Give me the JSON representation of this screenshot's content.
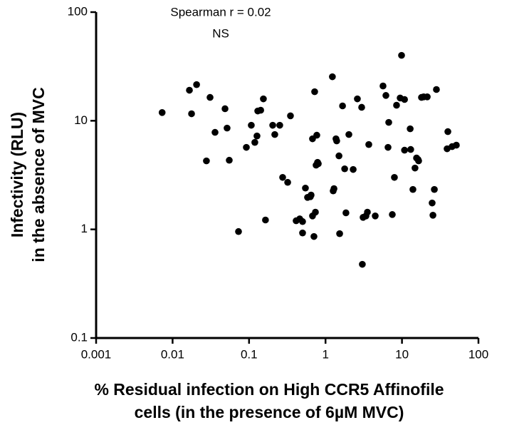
{
  "chart_data": {
    "type": "scatter",
    "annotations": [
      "Spearman r = 0.02",
      "NS"
    ],
    "x_label": [
      "% Residual infection on High CCR5 Affinofile",
      "cells (in the presence of 6µM MVC)"
    ],
    "y_label": [
      "Infectivity (RLU)",
      "in the absence of MVC"
    ],
    "xlog": true,
    "ylog": true,
    "xlim": [
      0.001,
      100
    ],
    "ylim": [
      0.1,
      100
    ],
    "xticks": [
      0.001,
      0.01,
      0.1,
      1,
      10,
      100
    ],
    "yticks": [
      0.1,
      1,
      10,
      100
    ],
    "color": "#000000",
    "x": [
      0.0073,
      0.0166,
      0.0177,
      0.0206,
      0.0277,
      0.0309,
      0.0359,
      0.0485,
      0.0516,
      0.0551,
      0.0728,
      0.0922,
      0.107,
      0.119,
      0.127,
      0.13,
      0.142,
      0.154,
      0.164,
      0.204,
      0.217,
      0.252,
      0.275,
      0.32,
      0.348,
      0.413,
      0.46,
      0.501,
      0.546,
      0.501,
      0.648,
      0.676,
      0.582,
      0.706,
      0.634,
      0.721,
      0.753,
      0.787,
      0.804,
      0.738,
      0.769,
      0.676,
      1.23,
      1.29,
      1.26,
      1.37,
      1.4,
      1.5,
      1.53,
      1.67,
      1.78,
      1.85,
      2.02,
      2.3,
      2.61,
      2.97,
      3.1,
      3.53,
      3.38,
      3.68,
      4.47,
      3.03,
      5.65,
      6.16,
      6.57,
      6.71,
      7.47,
      7.96,
      8.49,
      9.46,
      9.87,
      10.8,
      10.8,
      12.8,
      13.0,
      13.9,
      14.8,
      15.5,
      16.2,
      16.5,
      18.0,
      19.2,
      21.4,
      24.8,
      25.4,
      26.5,
      28.2,
      39.8,
      38.9,
      45.2,
      51.4
    ],
    "y": [
      11.9,
      19.1,
      11.6,
      21.5,
      4.27,
      16.4,
      7.82,
      12.9,
      8.56,
      4.33,
      0.955,
      5.69,
      9.09,
      6.32,
      7.24,
      12.3,
      12.5,
      15.9,
      1.22,
      9.09,
      7.47,
      9.09,
      3.01,
      2.71,
      11.1,
      1.2,
      1.25,
      1.18,
      2.4,
      0.927,
      2.07,
      1.33,
      1.97,
      0.86,
      2.0,
      18.5,
      3.9,
      4.14,
      4.02,
      1.44,
      7.36,
      6.82,
      25.4,
      2.37,
      2.26,
      6.82,
      6.52,
      4.75,
      0.913,
      13.7,
      3.61,
      1.42,
      7.47,
      3.56,
      15.9,
      13.3,
      1.29,
      1.44,
      1.33,
      6.04,
      1.33,
      0.477,
      20.9,
      17.1,
      5.69,
      9.66,
      1.37,
      3.01,
      13.9,
      16.2,
      40.0,
      5.36,
      15.7,
      8.43,
      5.44,
      2.33,
      3.67,
      4.54,
      4.4,
      4.27,
      16.4,
      16.6,
      16.6,
      1.75,
      1.35,
      2.33,
      19.4,
      7.94,
      5.52,
      5.78,
      5.96
    ]
  }
}
